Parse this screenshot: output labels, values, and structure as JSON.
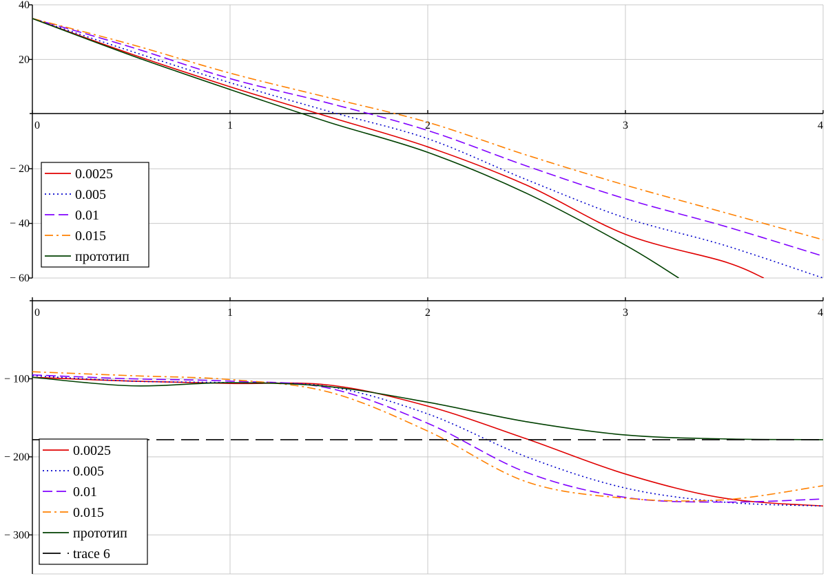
{
  "chart_data": [
    {
      "type": "line",
      "xlim": [
        0,
        4
      ],
      "ylim": [
        -60,
        40
      ],
      "x_ticks": [
        "0",
        "1",
        "2",
        "3",
        "4"
      ],
      "y_ticks": [
        {
          "value": 40,
          "label": "40"
        },
        {
          "value": 20,
          "label": "20"
        },
        {
          "value": -20,
          "label": "− 20"
        },
        {
          "value": -40,
          "label": "− 40"
        },
        {
          "value": -60,
          "label": "− 60"
        }
      ],
      "grid": true,
      "legend_position": "bottom-left",
      "series": [
        {
          "name": "0.0025",
          "color": "#e00000",
          "dash": "solid",
          "points": [
            [
              0,
              35
            ],
            [
              0.5,
              22
            ],
            [
              1,
              10
            ],
            [
              1.5,
              -1
            ],
            [
              2,
              -12
            ],
            [
              2.5,
              -26
            ],
            [
              3,
              -44
            ],
            [
              3.5,
              -54
            ],
            [
              3.7,
              -60
            ]
          ]
        },
        {
          "name": "0.005",
          "color": "#0000cc",
          "dash": "dot",
          "points": [
            [
              0,
              35
            ],
            [
              0.5,
              23
            ],
            [
              1,
              11.5
            ],
            [
              1.5,
              1
            ],
            [
              2,
              -9
            ],
            [
              2.5,
              -24
            ],
            [
              3,
              -38
            ],
            [
              3.5,
              -48
            ],
            [
              4,
              -60
            ]
          ]
        },
        {
          "name": "0.01",
          "color": "#8000ff",
          "dash": "dash",
          "points": [
            [
              0,
              35
            ],
            [
              0.5,
              24.5
            ],
            [
              1,
              13
            ],
            [
              1.5,
              4
            ],
            [
              2,
              -6
            ],
            [
              2.5,
              -19
            ],
            [
              3,
              -31
            ],
            [
              3.5,
              -41
            ],
            [
              4,
              -52
            ]
          ]
        },
        {
          "name": "0.015",
          "color": "#ff8000",
          "dash": "dashdot",
          "points": [
            [
              0,
              35
            ],
            [
              0.5,
              25.5
            ],
            [
              1,
              15
            ],
            [
              1.5,
              6
            ],
            [
              2,
              -3
            ],
            [
              2.5,
              -15
            ],
            [
              3,
              -26
            ],
            [
              3.5,
              -36
            ],
            [
              4,
              -46
            ]
          ]
        },
        {
          "name": "прототип",
          "color": "#004000",
          "dash": "solid",
          "points": [
            [
              0,
              35
            ],
            [
              0.5,
              21.5
            ],
            [
              1,
              9
            ],
            [
              1.5,
              -3
            ],
            [
              2,
              -14
            ],
            [
              2.5,
              -29
            ],
            [
              3,
              -48
            ],
            [
              3.27,
              -60
            ]
          ]
        }
      ]
    },
    {
      "type": "line",
      "xlim": [
        0,
        4
      ],
      "ylim": [
        -350,
        0
      ],
      "x_ticks": [
        "0",
        "1",
        "2",
        "3",
        "4"
      ],
      "y_ticks": [
        {
          "value": -100,
          "label": "− 100"
        },
        {
          "value": -200,
          "label": "− 200"
        },
        {
          "value": -300,
          "label": "− 300"
        }
      ],
      "grid": true,
      "legend_position": "bottom-left",
      "series": [
        {
          "name": "0.0025",
          "color": "#e00000",
          "dash": "solid",
          "points": [
            [
              0,
              -98
            ],
            [
              0.5,
              -103
            ],
            [
              1,
              -106
            ],
            [
              1.5,
              -108
            ],
            [
              2,
              -135
            ],
            [
              2.5,
              -177
            ],
            [
              3,
              -222
            ],
            [
              3.5,
              -253
            ],
            [
              4,
              -263
            ]
          ]
        },
        {
          "name": "0.005",
          "color": "#0000cc",
          "dash": "dot",
          "points": [
            [
              0,
              -96
            ],
            [
              0.5,
              -103
            ],
            [
              1,
              -105
            ],
            [
              1.5,
              -110
            ],
            [
              2,
              -145
            ],
            [
              2.5,
              -200
            ],
            [
              3,
              -240
            ],
            [
              3.5,
              -258
            ],
            [
              4,
              -263
            ]
          ]
        },
        {
          "name": "0.01",
          "color": "#8000ff",
          "dash": "dash",
          "points": [
            [
              0,
              -95
            ],
            [
              0.5,
              -100
            ],
            [
              1,
              -103
            ],
            [
              1.5,
              -112
            ],
            [
              2,
              -157
            ],
            [
              2.5,
              -220
            ],
            [
              3,
              -252
            ],
            [
              3.5,
              -258
            ],
            [
              4,
              -254
            ]
          ]
        },
        {
          "name": "0.015",
          "color": "#ff8000",
          "dash": "dashdot",
          "points": [
            [
              0,
              -91
            ],
            [
              0.5,
              -96
            ],
            [
              1,
              -101
            ],
            [
              1.5,
              -117
            ],
            [
              2,
              -167
            ],
            [
              2.5,
              -232
            ],
            [
              3,
              -253
            ],
            [
              3.5,
              -255
            ],
            [
              4,
              -237
            ]
          ]
        },
        {
          "name": "прототип",
          "color": "#004000",
          "dash": "solid",
          "points": [
            [
              0,
              -98
            ],
            [
              0.5,
              -109
            ],
            [
              1,
              -105
            ],
            [
              1.5,
              -110
            ],
            [
              2,
              -130
            ],
            [
              2.5,
              -155
            ],
            [
              3,
              -172
            ],
            [
              3.5,
              -177
            ],
            [
              4,
              -178
            ]
          ]
        },
        {
          "name": "trace 6",
          "color": "#000000",
          "dash": "longdash",
          "points": [
            [
              0,
              -178
            ],
            [
              4,
              -178
            ]
          ]
        }
      ]
    }
  ]
}
